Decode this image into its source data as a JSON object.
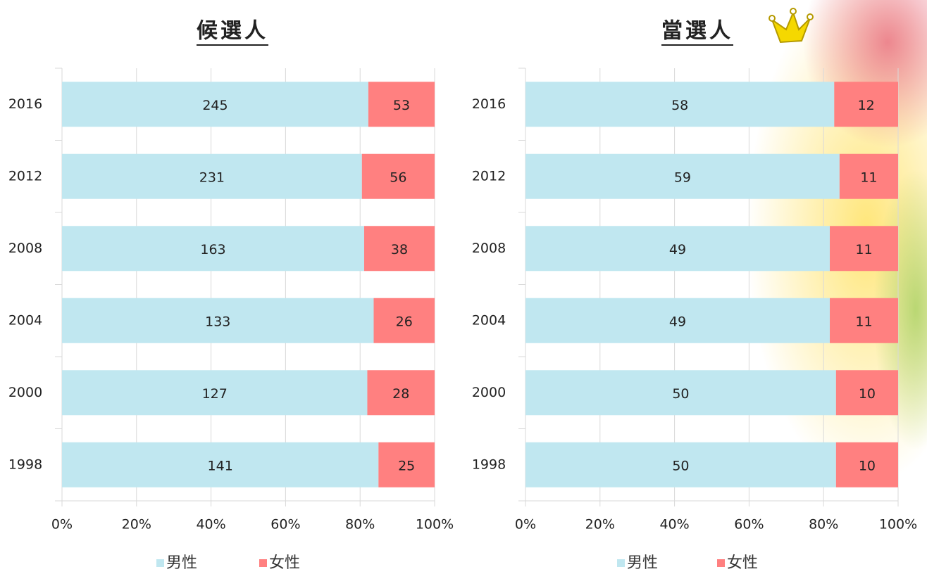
{
  "chart_data": [
    {
      "type": "bar",
      "orientation": "horizontal",
      "stacked": "percent",
      "title": "候選人",
      "categories": [
        "2016",
        "2012",
        "2008",
        "2004",
        "2000",
        "1998"
      ],
      "series": [
        {
          "name": "男性",
          "color": "#c0e7f0",
          "values": [
            245,
            231,
            163,
            133,
            127,
            141
          ]
        },
        {
          "name": "女性",
          "color": "#ff8080",
          "values": [
            53,
            56,
            38,
            26,
            28,
            25
          ]
        }
      ],
      "xlim": [
        0,
        100
      ],
      "xticks": [
        {
          "value": 0,
          "label": "0%"
        },
        {
          "value": 20,
          "label": "20%"
        },
        {
          "value": 40,
          "label": "40%"
        },
        {
          "value": 60,
          "label": "60%"
        },
        {
          "value": 80,
          "label": "80%"
        },
        {
          "value": 100,
          "label": "100%"
        }
      ],
      "grid": true,
      "legend": "bottom"
    },
    {
      "type": "bar",
      "orientation": "horizontal",
      "stacked": "percent",
      "title": "當選人",
      "categories": [
        "2016",
        "2012",
        "2008",
        "2004",
        "2000",
        "1998"
      ],
      "series": [
        {
          "name": "男性",
          "color": "#c0e7f0",
          "values": [
            58,
            59,
            49,
            49,
            50,
            50
          ]
        },
        {
          "name": "女性",
          "color": "#ff8080",
          "values": [
            12,
            11,
            11,
            11,
            10,
            10
          ]
        }
      ],
      "xlim": [
        0,
        100
      ],
      "xticks": [
        {
          "value": 0,
          "label": "0%"
        },
        {
          "value": 20,
          "label": "20%"
        },
        {
          "value": 40,
          "label": "40%"
        },
        {
          "value": 60,
          "label": "60%"
        },
        {
          "value": 80,
          "label": "80%"
        },
        {
          "value": 100,
          "label": "100%"
        }
      ],
      "grid": true,
      "legend": "bottom"
    }
  ]
}
